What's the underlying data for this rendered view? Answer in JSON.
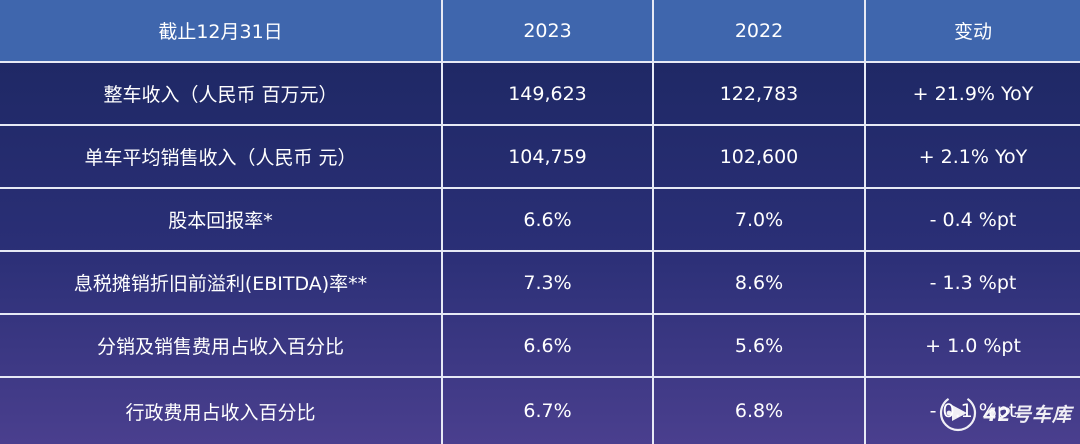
{
  "table": {
    "headers": [
      "截止12月31日",
      "2023",
      "2022",
      "变动"
    ],
    "rows": [
      [
        "整车收入（人民币 百万元）",
        "149,623",
        "122,783",
        "+ 21.9% YoY"
      ],
      [
        "单车平均销售收入（人民币 元）",
        "104,759",
        "102,600",
        "+ 2.1% YoY"
      ],
      [
        "股本回报率*",
        "6.6%",
        "7.0%",
        "- 0.4 %pt"
      ],
      [
        "息税摊销折旧前溢利(EBITDA)率**",
        "7.3%",
        "8.6%",
        "- 1.3 %pt"
      ],
      [
        "分销及销售费用占收入百分比",
        "6.6%",
        "5.6%",
        "+ 1.0 %pt"
      ],
      [
        "行政费用占收入百分比",
        "6.7%",
        "6.8%",
        "- 0.1 %pt"
      ]
    ]
  },
  "colors": {
    "header_bg": "#3f66ad",
    "body_bg_top": "#1b2660",
    "body_bg_bottom": "#4a3f8e",
    "grid": "#e6e9f5",
    "text": "#ffffff"
  },
  "watermark": {
    "text": "42号车库",
    "icon": "play-logo-icon"
  }
}
